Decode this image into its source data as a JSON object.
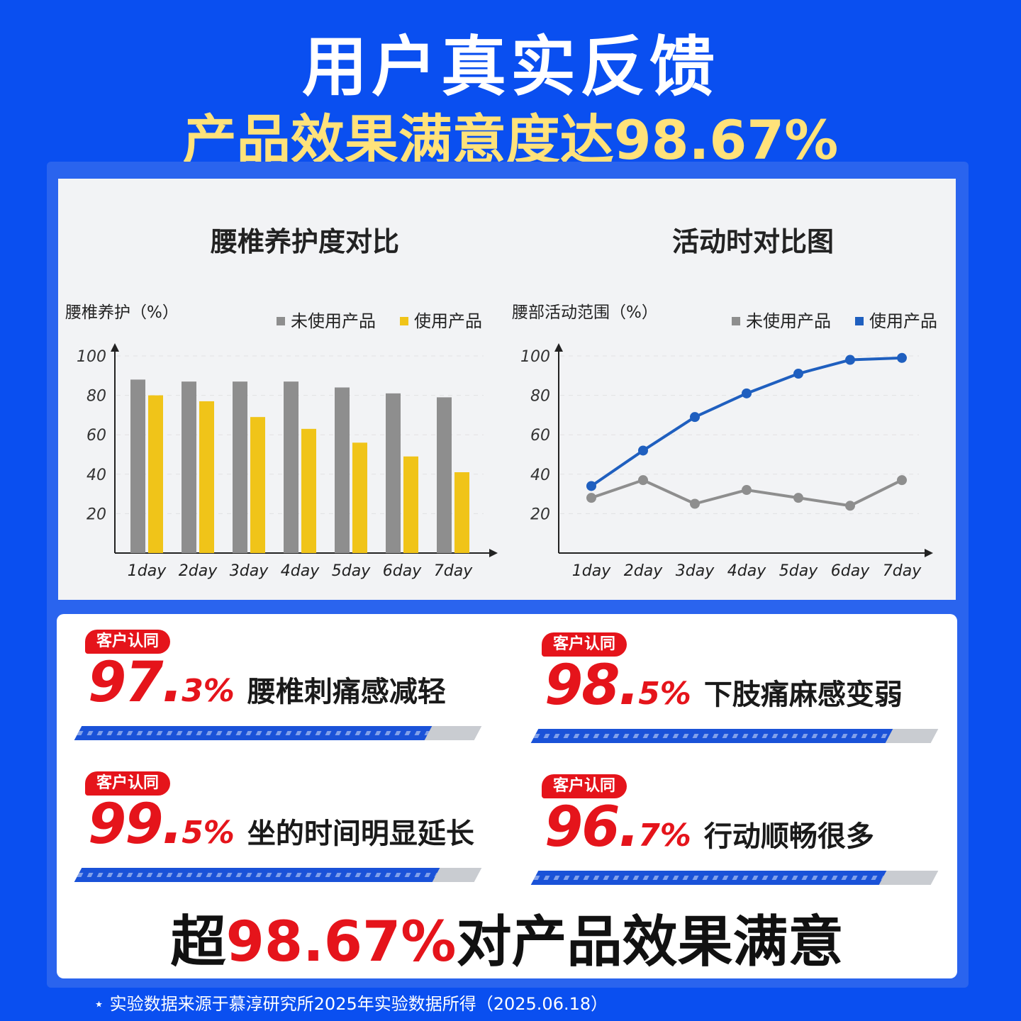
{
  "header": {
    "title": "用户真实反馈",
    "subtitle": "产品效果满意度达98.67%"
  },
  "chart_data": [
    {
      "type": "bar",
      "title": "腰椎养护度对比",
      "ylabel": "腰椎养护（%）",
      "categories": [
        "1day",
        "2day",
        "3day",
        "4day",
        "5day",
        "6day",
        "7day"
      ],
      "yticks": [
        "100",
        "80",
        "60",
        "40",
        "20"
      ],
      "ylim": [
        0,
        100
      ],
      "legend_placement": "top-right",
      "series": [
        {
          "name": "未使用产品",
          "color": "#8e8e8e",
          "values": [
            88,
            87,
            87,
            87,
            84,
            81,
            79
          ]
        },
        {
          "name": "使用产品",
          "color": "#f0c419",
          "values": [
            80,
            77,
            69,
            63,
            56,
            49,
            41
          ]
        }
      ]
    },
    {
      "type": "line",
      "title": "活动时对比图",
      "ylabel": "腰部活动范围（%）",
      "categories": [
        "1day",
        "2day",
        "3day",
        "4day",
        "5day",
        "6day",
        "7day"
      ],
      "yticks": [
        "100",
        "80",
        "60",
        "40",
        "20"
      ],
      "ylim": [
        0,
        100
      ],
      "legend_placement": "top-right",
      "series": [
        {
          "name": "未使用产品",
          "color": "#8e8e8e",
          "values": [
            28,
            37,
            25,
            32,
            28,
            24,
            37
          ]
        },
        {
          "name": "使用产品",
          "color": "#1f5fbf",
          "values": [
            34,
            52,
            69,
            81,
            91,
            98,
            99
          ]
        }
      ]
    }
  ],
  "stats": [
    {
      "badge": "客户认同",
      "int": "97.",
      "dec": "3%",
      "text": "腰椎刺痛感减轻",
      "percent": 97.3
    },
    {
      "badge": "客户认同",
      "int": "98.",
      "dec": "5%",
      "text": "下肢痛麻感变弱",
      "percent": 98.5
    },
    {
      "badge": "客户认同",
      "int": "99.",
      "dec": "5%",
      "text": "坐的时间明显延长",
      "percent": 99.5
    },
    {
      "badge": "客户认同",
      "int": "96.",
      "dec": "7%",
      "text": "行动顺畅很多",
      "percent": 96.7
    }
  ],
  "summary": {
    "prefix": "超",
    "highlight": "98.67%",
    "suffix": "对产品效果满意"
  },
  "footnote": "⋆ 实验数据来源于慕淳研究所2025年实验数据所得（2025.06.18）"
}
